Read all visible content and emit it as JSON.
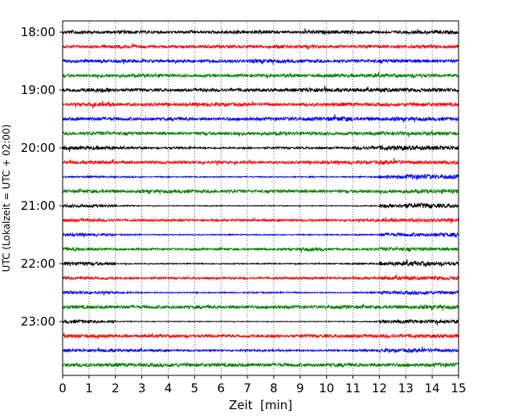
{
  "chart_data": {
    "type": "line",
    "title": "",
    "xlabel": "Zeit  [min]",
    "ylabel": "UTC (Lokalzeit = UTC + 02:00)",
    "xlim": [
      0,
      15
    ],
    "x_ticks": [
      "0",
      "1",
      "2",
      "3",
      "4",
      "5",
      "6",
      "7",
      "8",
      "9",
      "10",
      "11",
      "12",
      "13",
      "14",
      "15"
    ],
    "y_tick_labels": [
      "18:00",
      "19:00",
      "20:00",
      "21:00",
      "22:00",
      "23:00"
    ],
    "grid": "vertical dotted at each minute",
    "row_interval_minutes": 15,
    "rows_per_hour": 4,
    "trace_colors": [
      "#000000",
      "#ff0000",
      "#0000ff",
      "#008000"
    ],
    "traces": [
      {
        "start": "18:00",
        "activity": [
          1,
          0.8,
          0.9,
          0.8,
          0.7,
          0.8,
          1,
          0.9,
          0.7,
          1,
          1,
          0.9,
          0.8,
          0.9,
          1
        ]
      },
      {
        "start": "18:15",
        "activity": [
          0.8,
          0.9,
          0.9,
          0.8,
          0.8,
          0.9,
          0.8,
          0.9,
          1,
          1,
          0.8,
          0.9,
          0.9,
          1,
          0.9
        ]
      },
      {
        "start": "18:30",
        "activity": [
          0.8,
          0.9,
          0.9,
          0.8,
          0.8,
          0.8,
          0.9,
          1,
          0.9,
          0.9,
          0.8,
          0.9,
          1,
          1,
          0.9
        ]
      },
      {
        "start": "18:45",
        "activity": [
          0.8,
          0.9,
          0.9,
          1,
          0.8,
          0.9,
          0.8,
          0.9,
          0.9,
          0.8,
          1,
          1,
          0.9,
          1,
          0.9
        ]
      },
      {
        "start": "19:00",
        "activity": [
          1,
          1.3,
          0.9,
          0.8,
          0.8,
          0.9,
          0.9,
          0.8,
          0.9,
          1.3,
          1,
          1,
          1.1,
          1,
          1.1
        ]
      },
      {
        "start": "19:15",
        "activity": [
          0.8,
          1.1,
          0.9,
          0.9,
          0.9,
          1,
          1,
          0.9,
          0.8,
          0.9,
          1,
          0.9,
          0.9,
          1,
          1
        ]
      },
      {
        "start": "19:30",
        "activity": [
          0.9,
          1,
          0.9,
          0.9,
          0.9,
          0.8,
          0.9,
          0.9,
          1,
          1,
          1.3,
          1,
          1,
          1,
          1
        ]
      },
      {
        "start": "19:45",
        "activity": [
          0.9,
          1,
          0.9,
          0.9,
          0.8,
          0.9,
          0.9,
          0.9,
          1,
          1,
          0.9,
          1,
          1,
          1,
          1
        ]
      },
      {
        "start": "20:00",
        "activity": [
          1,
          1.1,
          0.6,
          0.5,
          0.6,
          0.5,
          0.5,
          0.5,
          0.6,
          0.6,
          0.6,
          1,
          1.3,
          1.2,
          1.2
        ]
      },
      {
        "start": "20:15",
        "activity": [
          0.9,
          1,
          0.7,
          0.8,
          0.8,
          0.8,
          0.7,
          0.7,
          0.8,
          0.8,
          0.9,
          0.9,
          1.2,
          1,
          1
        ]
      },
      {
        "start": "20:30",
        "activity": [
          0.4,
          0.5,
          0.4,
          0.3,
          0.3,
          0.3,
          0.3,
          0.3,
          0.3,
          0.3,
          0.3,
          0.4,
          1,
          1.4,
          1.2
        ]
      },
      {
        "start": "20:45",
        "activity": [
          0.9,
          1,
          0.8,
          0.9,
          1,
          0.9,
          0.9,
          0.8,
          0.9,
          0.9,
          0.8,
          0.9,
          1,
          1,
          1.2
        ]
      },
      {
        "start": "21:00",
        "activity": [
          0.9,
          0.8,
          0.3,
          0.2,
          0.2,
          0.2,
          0.2,
          0.2,
          0.2,
          0.2,
          0.2,
          0.3,
          1.1,
          1.4,
          1.1
        ]
      },
      {
        "start": "21:15",
        "activity": [
          0.9,
          0.8,
          0.6,
          0.6,
          0.6,
          0.6,
          0.6,
          0.6,
          0.6,
          0.6,
          0.6,
          0.6,
          0.9,
          1,
          1
        ]
      },
      {
        "start": "21:30",
        "activity": [
          0.9,
          0.7,
          0.4,
          0.3,
          0.3,
          0.3,
          0.3,
          0.3,
          0.3,
          0.3,
          0.3,
          0.4,
          1,
          1,
          1.1
        ]
      },
      {
        "start": "21:45",
        "activity": [
          1,
          0.8,
          0.6,
          0.6,
          0.6,
          0.6,
          0.6,
          0.6,
          0.6,
          1,
          0.6,
          0.7,
          1,
          1,
          0.9
        ]
      },
      {
        "start": "22:00",
        "activity": [
          1.1,
          0.9,
          0.3,
          0.3,
          0.3,
          0.3,
          0.3,
          0.3,
          0.3,
          0.3,
          0.3,
          0.4,
          1.1,
          1.2,
          1
        ]
      },
      {
        "start": "22:15",
        "activity": [
          0.9,
          0.8,
          0.6,
          0.6,
          0.6,
          0.6,
          0.6,
          0.6,
          0.6,
          0.6,
          0.7,
          0.7,
          1,
          1,
          1
        ]
      },
      {
        "start": "22:30",
        "activity": [
          0.8,
          0.7,
          0.4,
          0.3,
          0.3,
          0.3,
          0.3,
          0.4,
          0.4,
          0.3,
          0.3,
          0.4,
          0.9,
          1,
          0.9
        ]
      },
      {
        "start": "22:45",
        "activity": [
          1,
          0.9,
          0.9,
          0.9,
          0.9,
          0.9,
          0.9,
          0.9,
          0.9,
          0.9,
          1,
          0.9,
          1,
          1,
          1.1
        ]
      },
      {
        "start": "23:00",
        "activity": [
          1,
          0.8,
          0.3,
          0.2,
          0.2,
          0.2,
          0.2,
          0.2,
          0.2,
          0.2,
          0.2,
          0.3,
          1,
          1,
          1
        ]
      },
      {
        "start": "23:15",
        "activity": [
          1,
          0.9,
          0.8,
          0.8,
          0.8,
          0.8,
          0.8,
          0.8,
          0.8,
          0.9,
          0.9,
          0.9,
          1,
          1,
          1
        ]
      },
      {
        "start": "23:30",
        "activity": [
          0.9,
          0.9,
          0.8,
          0.6,
          0.5,
          0.5,
          0.5,
          0.5,
          0.5,
          0.5,
          0.5,
          0.6,
          1,
          1.1,
          0.9
        ]
      },
      {
        "start": "23:45",
        "activity": [
          1,
          1,
          1,
          1,
          1,
          1,
          1,
          1,
          1,
          1,
          1,
          1,
          1,
          1,
          1.2
        ]
      }
    ]
  }
}
